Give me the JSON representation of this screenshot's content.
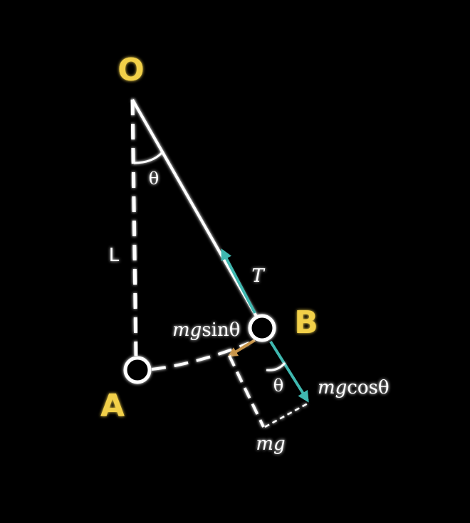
{
  "colors": {
    "background": "#000000",
    "line": "#ffffff",
    "point_label": "#f2d04a",
    "tension": "#3fb8b0",
    "tangential": "#c8954a"
  },
  "labels": {
    "pivot": "O",
    "rest_point": "A",
    "bob_point": "B",
    "angle_top": "θ",
    "length": "L",
    "tension": "T",
    "tangential_force_var": "mg",
    "tangential_force_fn": "sinθ",
    "radial_force_var": "mg",
    "radial_force_fn": "cosθ",
    "angle_bottom": "θ",
    "weight": "mg"
  },
  "icons": {
    "bob": "circle-icon",
    "rest": "circle-icon"
  }
}
